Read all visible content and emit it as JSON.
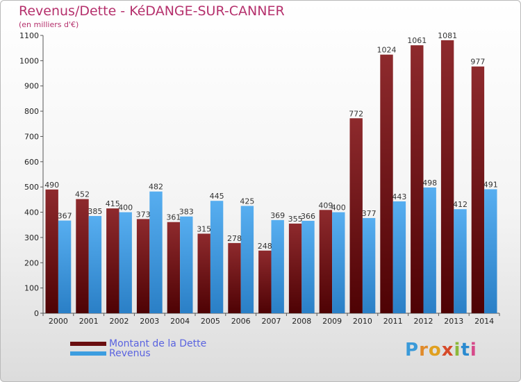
{
  "title": "Revenus/Dette - KéDANGE-SUR-CANNER",
  "subtitle": "(en milliers d'€)",
  "colors": {
    "dette": "#7a1a1c",
    "revenus": "#3c9de0",
    "title": "#b5306c"
  },
  "legend": {
    "dette_label": "Montant de la Dette",
    "revenus_label": "Revenus"
  },
  "logo": {
    "text": "Proxiti"
  },
  "chart_data": {
    "type": "bar",
    "title": "Revenus/Dette - KéDANGE-SUR-CANNER",
    "subtitle": "(en milliers d'€)",
    "xlabel": "",
    "ylabel": "",
    "ylim": [
      0,
      1100
    ],
    "yticks": [
      0,
      100,
      200,
      300,
      400,
      500,
      600,
      700,
      800,
      900,
      1000,
      1100
    ],
    "grid": false,
    "legend_position": "bottom-left",
    "categories": [
      "2000",
      "2001",
      "2002",
      "2003",
      "2004",
      "2005",
      "2006",
      "2007",
      "2008",
      "2009",
      "2010",
      "2011",
      "2012",
      "2013",
      "2014"
    ],
    "series": [
      {
        "name": "Montant de la Dette",
        "values": [
          490,
          452,
          415,
          373,
          361,
          315,
          278,
          248,
          355,
          409,
          772,
          1024,
          1061,
          1081,
          977
        ],
        "labels": [
          "490",
          "452",
          "415",
          "373",
          "361",
          "315",
          "278",
          "248",
          "355",
          "409",
          "772",
          "1024",
          "1061",
          "1081",
          "977"
        ]
      },
      {
        "name": "Revenus",
        "values": [
          367,
          385,
          400,
          482,
          383,
          445,
          425,
          369,
          366,
          400,
          377,
          443,
          498,
          412,
          491
        ],
        "labels": [
          "367",
          "385",
          "400",
          "482",
          "383",
          "445",
          "425",
          "369",
          "366",
          "400",
          "377",
          "443",
          "498",
          "412",
          "491"
        ]
      }
    ]
  }
}
